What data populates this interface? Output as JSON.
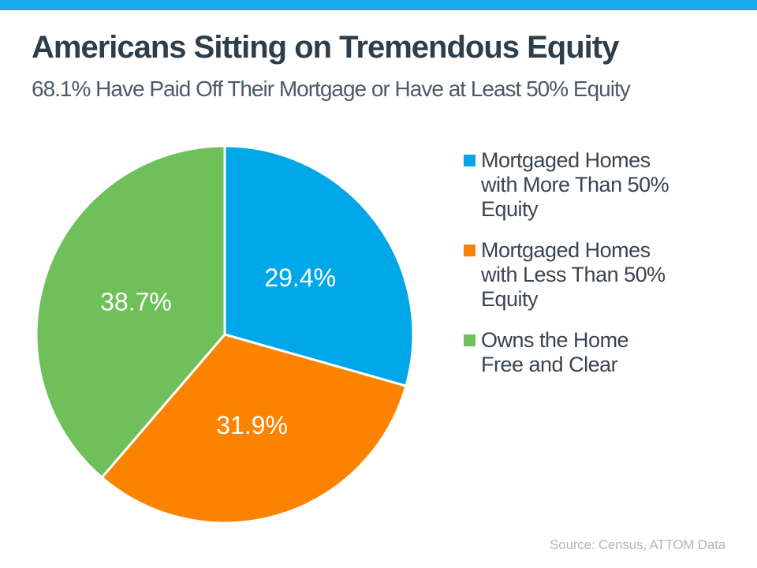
{
  "accent": {
    "top_bar_color": "#18abec"
  },
  "chart_data": {
    "type": "pie",
    "title": "Americans Sitting on Tremendous Equity",
    "subtitle": "68.1% Have Paid Off Their Mortgage or Have at Least 50% Equity",
    "start_angle_deg": 0,
    "direction": "clockwise",
    "legend_position": "right",
    "data_label_color": "#FFFFFF",
    "slices": [
      {
        "label": "Mortgaged Homes with More Than 50% Equity",
        "legend_lines": [
          "Mortgaged Homes",
          "with More Than 50%",
          "Equity"
        ],
        "value": 29.4,
        "data_label": "29.4%",
        "color": "#00a7e8"
      },
      {
        "label": "Mortgaged Homes with Less Than 50% Equity",
        "legend_lines": [
          "Mortgaged Homes",
          "with Less Than 50%",
          "Equity"
        ],
        "value": 31.9,
        "data_label": "31.9%",
        "color": "#fb8300"
      },
      {
        "label": "Owns the Home Free and Clear",
        "legend_lines": [
          "Owns the Home",
          "Free and Clear"
        ],
        "value": 38.7,
        "data_label": "38.7%",
        "color": "#6fc05b"
      }
    ],
    "source": "Source: Census, ATTOM Data"
  }
}
